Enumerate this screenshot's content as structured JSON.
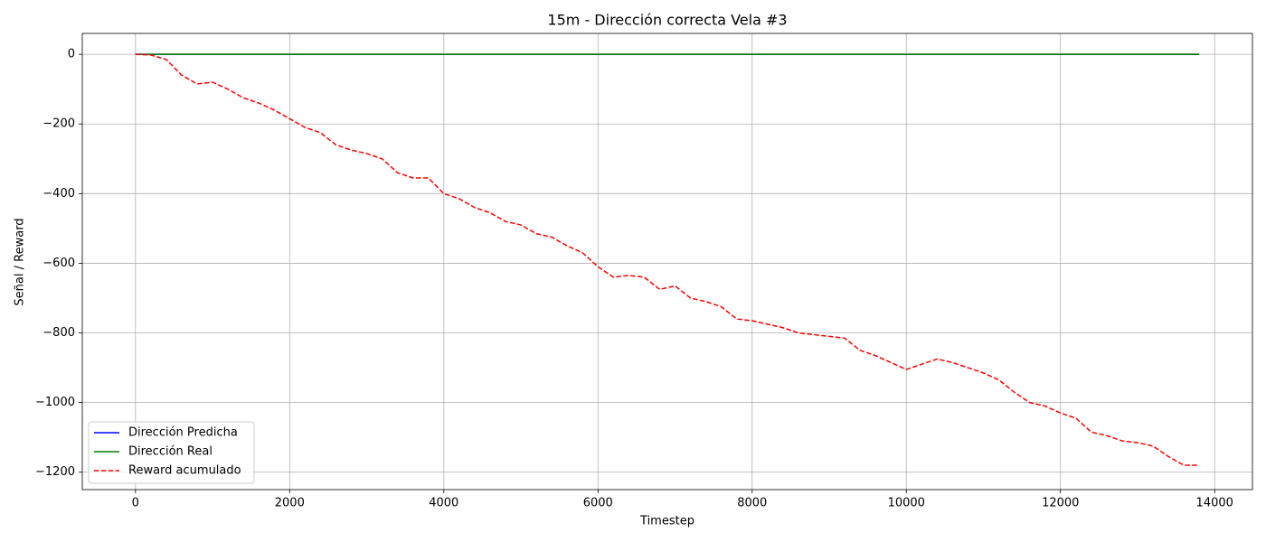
{
  "chart_data": {
    "type": "line",
    "title": "15m - Dirección correcta Vela #3",
    "x_label": "Timestep",
    "y_label": "Señal / Reward",
    "x": [
      0,
      200,
      400,
      600,
      800,
      1000,
      1200,
      1400,
      1600,
      1800,
      2000,
      2200,
      2400,
      2600,
      2800,
      3000,
      3200,
      3400,
      3600,
      3800,
      4000,
      4200,
      4400,
      4600,
      4800,
      5000,
      5200,
      5400,
      5600,
      5800,
      6000,
      6200,
      6400,
      6600,
      6800,
      7000,
      7200,
      7400,
      7600,
      7800,
      8000,
      8200,
      8400,
      8600,
      8800,
      9000,
      9200,
      9400,
      9600,
      9800,
      10000,
      10200,
      10400,
      10600,
      10800,
      11000,
      11200,
      11400,
      11600,
      11800,
      12000,
      12200,
      12400,
      12600,
      12800,
      13000,
      13200,
      13400,
      13600,
      13800
    ],
    "series": [
      {
        "name": "Dirección Predicha",
        "color": "#0000ff",
        "linestyle": "solid",
        "values": [
          0,
          0,
          0,
          0,
          0,
          0,
          0,
          0,
          0,
          0,
          0,
          0,
          0,
          0,
          0,
          0,
          0,
          0,
          0,
          0,
          0,
          0,
          0,
          0,
          0,
          0,
          0,
          0,
          0,
          0,
          0,
          0,
          0,
          0,
          0,
          0,
          0,
          0,
          0,
          0,
          0,
          0,
          0,
          0,
          0,
          0,
          0,
          0,
          0,
          0,
          0,
          0,
          0,
          0,
          0,
          0,
          0,
          0,
          0,
          0,
          0,
          0,
          0,
          0,
          0,
          0,
          0,
          0,
          0,
          0
        ]
      },
      {
        "name": "Dirección Real",
        "color": "#008000",
        "linestyle": "solid",
        "values": [
          0,
          0,
          0,
          0,
          0,
          0,
          0,
          0,
          0,
          0,
          0,
          0,
          0,
          0,
          0,
          0,
          0,
          0,
          0,
          0,
          0,
          0,
          0,
          0,
          0,
          0,
          0,
          0,
          0,
          0,
          0,
          0,
          0,
          0,
          0,
          0,
          0,
          0,
          0,
          0,
          0,
          0,
          0,
          0,
          0,
          0,
          0,
          0,
          0,
          0,
          0,
          0,
          0,
          0,
          0,
          0,
          0,
          0,
          0,
          0,
          0,
          0,
          0,
          0,
          0,
          0,
          0,
          0,
          0,
          0
        ]
      },
      {
        "name": "Reward acumulado",
        "color": "#ff0000",
        "linestyle": "dashed",
        "values": [
          0,
          -2,
          -15,
          -60,
          -85,
          -80,
          -100,
          -125,
          -140,
          -160,
          -185,
          -210,
          -225,
          -260,
          -275,
          -285,
          -300,
          -340,
          -355,
          -355,
          -400,
          -415,
          -440,
          -455,
          -480,
          -490,
          -515,
          -525,
          -550,
          -570,
          -610,
          -640,
          -635,
          -640,
          -675,
          -665,
          -700,
          -710,
          -725,
          -760,
          -765,
          -775,
          -785,
          -800,
          -805,
          -810,
          -815,
          -850,
          -865,
          -885,
          -905,
          -890,
          -875,
          -885,
          -900,
          -915,
          -935,
          -970,
          -1000,
          -1010,
          -1030,
          -1045,
          -1085,
          -1095,
          -1110,
          -1115,
          -1125,
          -1155,
          -1180,
          -1180
        ]
      }
    ],
    "xlim": [
      -690,
      14490
    ],
    "ylim": [
      -1250,
      60
    ],
    "xticks": [
      0,
      2000,
      4000,
      6000,
      8000,
      10000,
      12000,
      14000
    ],
    "yticks": [
      {
        "value": -1200,
        "label": "−1200"
      },
      {
        "value": -1000,
        "label": "−1000"
      },
      {
        "value": -800,
        "label": "−800"
      },
      {
        "value": -600,
        "label": "−600"
      },
      {
        "value": -400,
        "label": "−400"
      },
      {
        "value": -200,
        "label": "−200"
      },
      0
    ],
    "grid": true,
    "legend": "lower left"
  }
}
